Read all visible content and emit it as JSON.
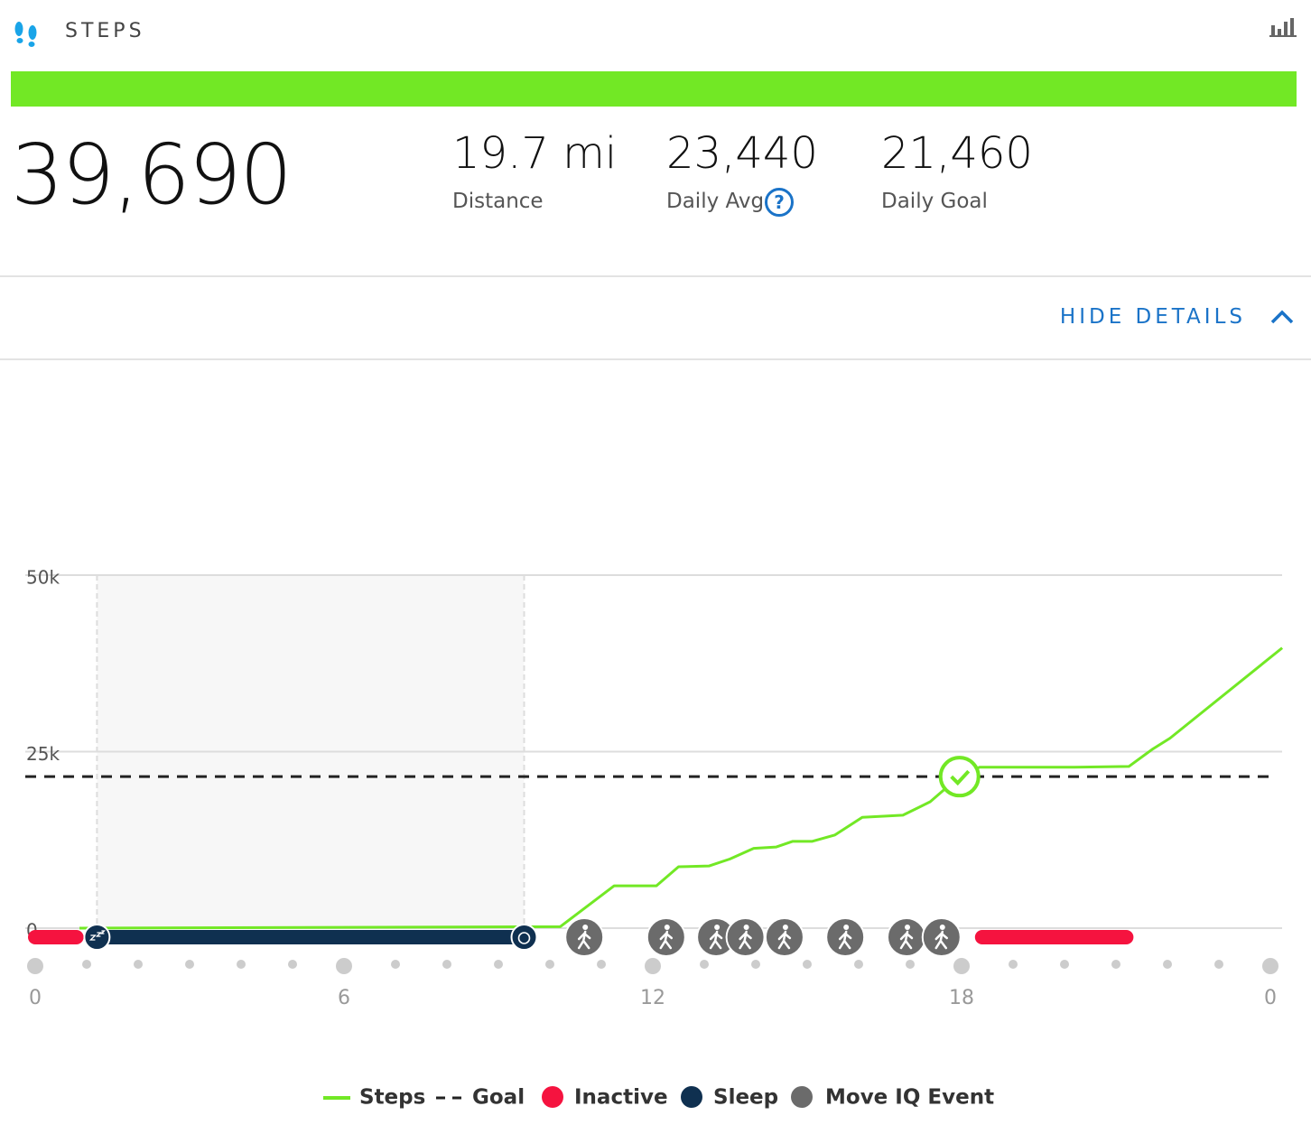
{
  "header": {
    "title": "STEPS",
    "total": "39,690",
    "action": "HIDE DETAILS"
  },
  "stats": [
    {
      "value": "19.7 mi",
      "label": "Distance"
    },
    {
      "value": "23,440",
      "label": "Daily Avg"
    },
    {
      "value": "21,460",
      "label": "Daily Goal"
    }
  ],
  "chart_data": {
    "type": "line",
    "xlim": [
      0,
      24
    ],
    "ylim": [
      0,
      50000
    ],
    "xticks": [
      0,
      6,
      12,
      18,
      {
        "value": 24,
        "label": "0"
      }
    ],
    "xminorticks": [
      1,
      2,
      3,
      4,
      5,
      7,
      8,
      9,
      10,
      11,
      13,
      14,
      15,
      16,
      17,
      19,
      20,
      21,
      22,
      23
    ],
    "yticks": [
      0,
      {
        "value": 25000,
        "label": "25k"
      },
      {
        "value": 50000,
        "label": "50k"
      }
    ],
    "grid": true,
    "series": [
      {
        "name": "Steps",
        "color": "#72e825",
        "x": [
          0.86,
          10.2,
          11.25,
          12.07,
          12.5,
          13.09,
          13.5,
          13.96,
          14.4,
          14.72,
          15.1,
          15.54,
          16.07,
          16.86,
          17.39,
          17.96,
          18.35,
          20.2,
          21.25,
          21.7,
          22.05,
          24.23
        ],
        "values": [
          0,
          200,
          6000,
          6000,
          8700,
          8800,
          9800,
          11300,
          11500,
          12300,
          12300,
          13200,
          15700,
          16000,
          17900,
          21500,
          22800,
          22800,
          22900,
          25300,
          26900,
          39690
        ]
      }
    ],
    "goal": {
      "name": "Goal",
      "color": "#222222",
      "value": 21460
    },
    "goal_reached_x": 17.96,
    "inactive": {
      "name": "Inactive",
      "color": "#f5133f",
      "periods": [
        [
          0,
          0.8
        ],
        [
          18.4,
          21.2
        ]
      ]
    },
    "sleep": {
      "name": "Sleep",
      "color": "#0f3050",
      "periods": [
        [
          1.2,
          9.5
        ]
      ]
    },
    "move_iq": {
      "name": "Move IQ Event",
      "color": "#6b6b6b",
      "x": [
        10.67,
        12.26,
        13.23,
        13.8,
        14.56,
        15.74,
        16.93,
        17.61
      ]
    }
  }
}
